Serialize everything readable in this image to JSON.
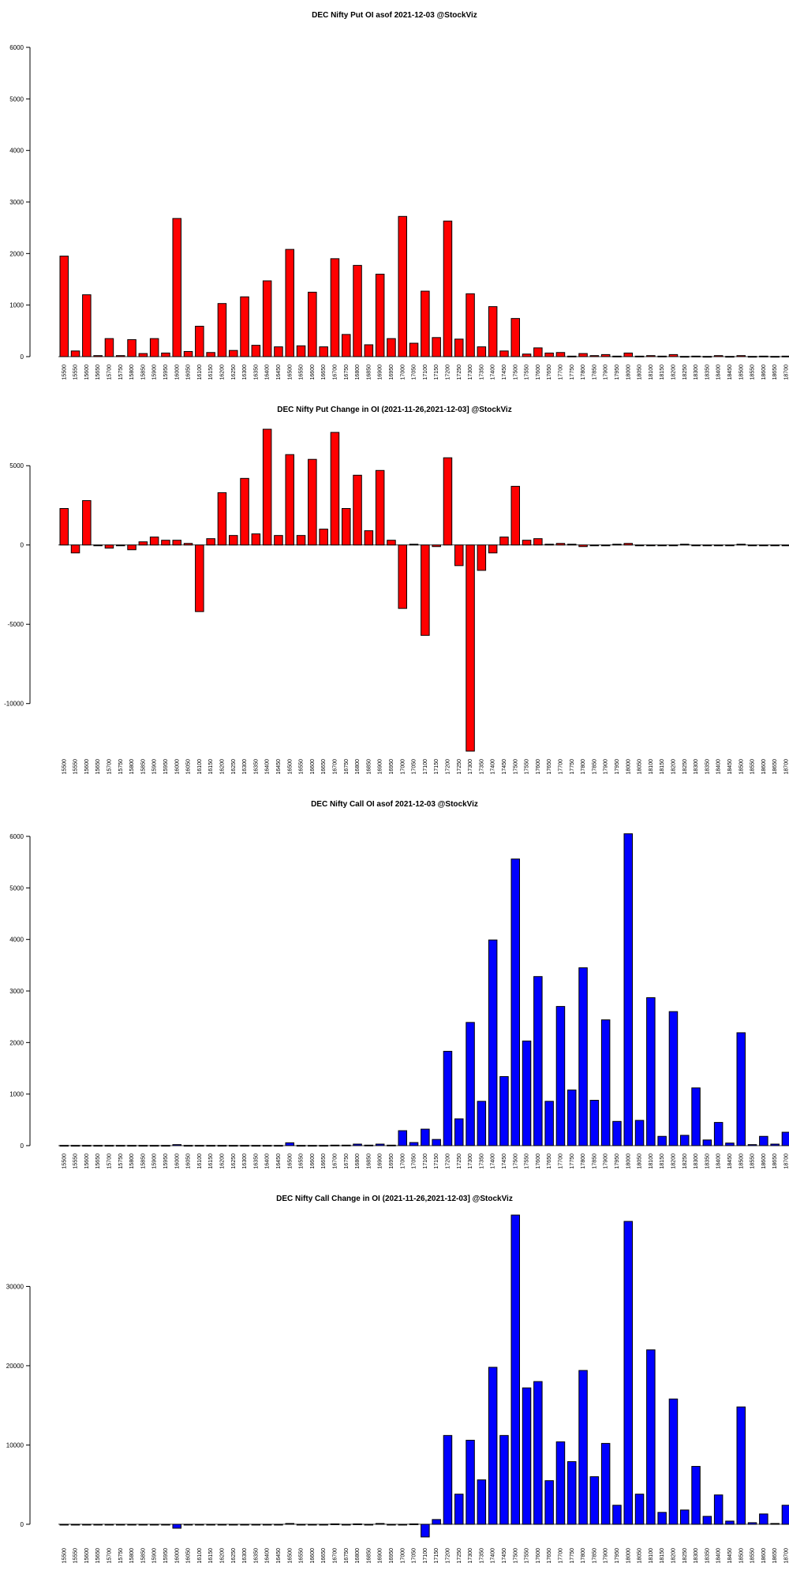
{
  "strikes": [
    "15500",
    "15550",
    "15600",
    "15650",
    "15700",
    "15750",
    "15800",
    "15850",
    "15900",
    "15950",
    "16000",
    "16050",
    "16100",
    "16150",
    "16200",
    "16250",
    "16300",
    "16350",
    "16400",
    "16450",
    "16500",
    "16550",
    "16600",
    "16650",
    "16700",
    "16750",
    "16800",
    "16850",
    "16900",
    "16950",
    "17000",
    "17050",
    "17100",
    "17150",
    "17200",
    "17250",
    "17300",
    "17350",
    "17400",
    "17450",
    "17500",
    "17550",
    "17600",
    "17650",
    "17700",
    "17750",
    "17800",
    "17850",
    "17900",
    "17950",
    "18000",
    "18050",
    "18100",
    "18150",
    "18200",
    "18250",
    "18300",
    "18350",
    "18400",
    "18450",
    "18500",
    "18550",
    "18600",
    "18650",
    "18700"
  ],
  "chart_data": [
    {
      "type": "bar",
      "title": "DEC Nifty Put OI asof 2021-12-03 @StockViz",
      "color": "#ff0000",
      "ylim": [
        0,
        6000
      ],
      "yticks": [
        0,
        1000,
        2000,
        3000,
        4000,
        5000,
        6000
      ],
      "values": [
        1950,
        110,
        1200,
        20,
        350,
        20,
        330,
        60,
        350,
        70,
        2680,
        100,
        590,
        80,
        1030,
        120,
        1160,
        220,
        1470,
        190,
        2080,
        210,
        1250,
        190,
        1900,
        430,
        1770,
        230,
        1600,
        350,
        2720,
        260,
        1270,
        370,
        2630,
        340,
        1220,
        190,
        970,
        110,
        740,
        50,
        170,
        70,
        80,
        10,
        60,
        20,
        40,
        10,
        70,
        10,
        20,
        10,
        40,
        5,
        10,
        5,
        20,
        5,
        20,
        5,
        10,
        5,
        10
      ]
    },
    {
      "type": "bar",
      "title": "DEC Nifty Put Change in OI (2021-11-26,2021-12-03] @StockViz",
      "color": "#ff0000",
      "ylim": [
        -13000,
        7500
      ],
      "yticks": [
        -10000,
        -5000,
        0,
        5000
      ],
      "values": [
        2300,
        -500,
        2800,
        0,
        -200,
        0,
        -300,
        200,
        500,
        300,
        300,
        100,
        -4200,
        400,
        3300,
        600,
        4200,
        700,
        7300,
        600,
        5700,
        600,
        5400,
        1000,
        7100,
        2300,
        4400,
        900,
        4700,
        300,
        -4000,
        50,
        -5700,
        -100,
        5500,
        -1300,
        -13000,
        -1600,
        -500,
        500,
        3700,
        300,
        400,
        50,
        100,
        50,
        -100,
        -50,
        -50,
        50,
        100,
        -50,
        -50,
        -50,
        -50,
        50,
        -50,
        -50,
        -50,
        -50,
        50,
        -50,
        -50,
        -50,
        -50
      ]
    },
    {
      "type": "bar",
      "title": "DEC Nifty Call OI asof 2021-12-03 @StockViz",
      "color": "#0000ff",
      "ylim": [
        0,
        6000
      ],
      "yticks": [
        0,
        1000,
        2000,
        3000,
        4000,
        5000,
        6000
      ],
      "values": [
        5,
        5,
        5,
        5,
        5,
        5,
        5,
        5,
        5,
        5,
        20,
        5,
        5,
        5,
        5,
        5,
        5,
        5,
        5,
        5,
        55,
        5,
        5,
        5,
        10,
        10,
        30,
        10,
        30,
        10,
        290,
        60,
        320,
        120,
        1830,
        520,
        2390,
        860,
        3990,
        1340,
        5560,
        2030,
        3280,
        860,
        2700,
        1080,
        3450,
        880,
        2440,
        470,
        6050,
        490,
        2870,
        180,
        2600,
        200,
        1120,
        110,
        450,
        50,
        2190,
        20,
        180,
        30,
        260
      ]
    },
    {
      "type": "bar",
      "title": "DEC Nifty Call Change in OI (2021-11-26,2021-12-03] @StockViz",
      "color": "#0000ff",
      "ylim": [
        -2000,
        39000
      ],
      "yticks": [
        0,
        10000,
        20000,
        30000
      ],
      "values": [
        0,
        0,
        0,
        0,
        0,
        0,
        0,
        0,
        0,
        0,
        -500,
        0,
        0,
        0,
        0,
        0,
        0,
        0,
        0,
        0,
        100,
        0,
        0,
        0,
        50,
        0,
        50,
        0,
        100,
        0,
        -100,
        50,
        -1600,
        600,
        11200,
        3800,
        10600,
        5600,
        19800,
        11200,
        39000,
        17200,
        18000,
        5500,
        10400,
        7900,
        19400,
        6000,
        10200,
        2400,
        38200,
        3800,
        22000,
        1500,
        15800,
        1800,
        7300,
        1000,
        3700,
        400,
        14800,
        200,
        1300,
        100,
        2400
      ]
    }
  ]
}
